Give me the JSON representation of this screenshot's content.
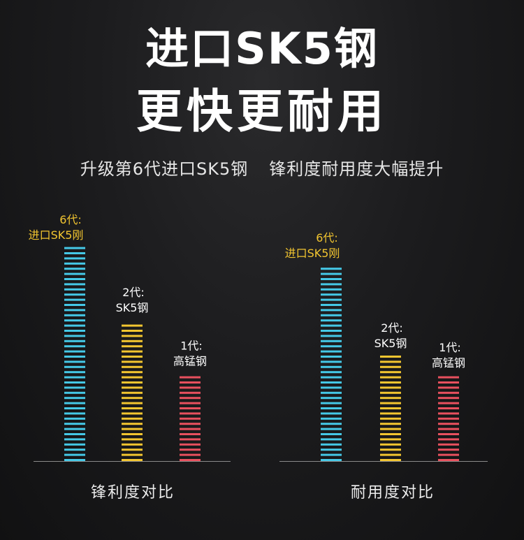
{
  "header": {
    "title_line1": "进口SK5钢",
    "title_line2": "更快更耐用",
    "subtitle_left": "升级第6代进口SK5钢",
    "subtitle_right": "锋利度耐用度大幅提升"
  },
  "chart_data": [
    {
      "type": "bar",
      "xlabel": "锋利度对比",
      "categories": [
        {
          "line1": "6代:",
          "line2": "进口SK5刚"
        },
        {
          "line1": "2代:",
          "line2": "SK5钢"
        },
        {
          "line1": "1代:",
          "line2": "高锰钢"
        }
      ],
      "values": [
        100,
        66,
        41
      ],
      "colors": [
        "#45c8e6",
        "#f2c530",
        "#e8505e"
      ],
      "label_colors": [
        "#f2c530",
        "#ffffff",
        "#ffffff"
      ],
      "ylim": [
        0,
        100
      ]
    },
    {
      "type": "bar",
      "xlabel": "耐用度对比",
      "categories": [
        {
          "line1": "6代:",
          "line2": "进口SK5刚"
        },
        {
          "line1": "2代:",
          "line2": "SK5钢"
        },
        {
          "line1": "1代:",
          "line2": "高锰钢"
        }
      ],
      "values": [
        100,
        54,
        44
      ],
      "colors": [
        "#45c8e6",
        "#f2c530",
        "#e8505e"
      ],
      "label_colors": [
        "#f2c530",
        "#ffffff",
        "#ffffff"
      ],
      "ylim": [
        0,
        100
      ]
    }
  ]
}
